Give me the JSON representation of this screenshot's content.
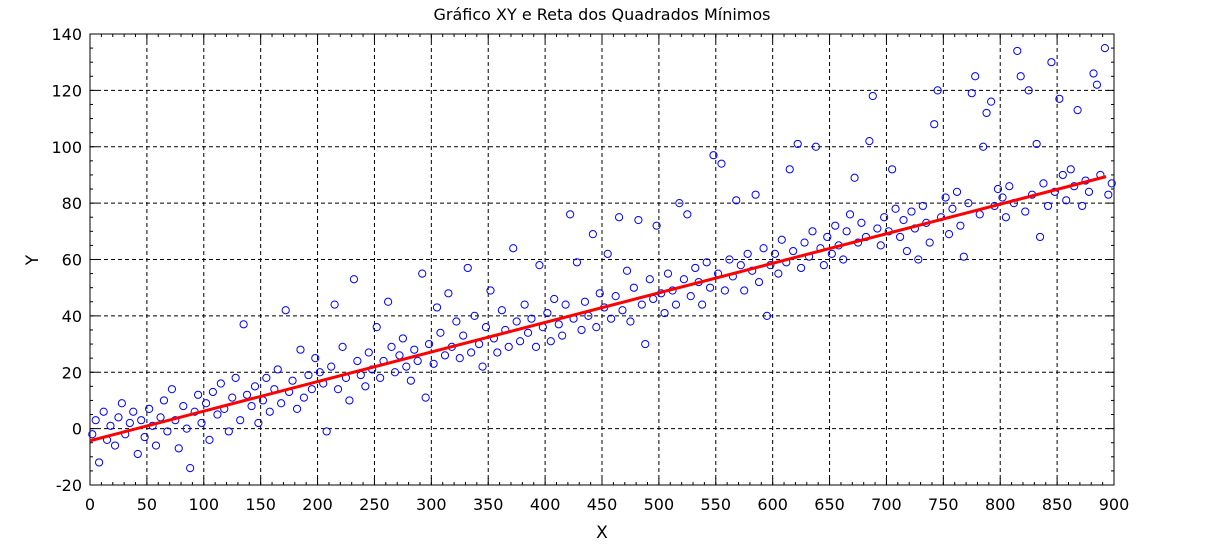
{
  "chart_data": {
    "type": "scatter",
    "title": "Gráfico XY e Reta dos Quadrados Mínimos",
    "xlabel": "X",
    "ylabel": "Y",
    "xlim": [
      0,
      900
    ],
    "ylim": [
      -20,
      140
    ],
    "x_ticks": [
      0,
      50,
      100,
      150,
      200,
      250,
      300,
      350,
      400,
      450,
      500,
      550,
      600,
      650,
      700,
      750,
      800,
      850,
      900
    ],
    "y_ticks": [
      -20,
      0,
      20,
      40,
      60,
      80,
      100,
      120,
      140
    ],
    "x_tick_labels": [
      "0",
      "50",
      "100",
      "150",
      "200",
      "250",
      "300",
      "350",
      "400",
      "450",
      "500",
      "550",
      "600",
      "650",
      "700",
      "750",
      "800",
      "850",
      "900"
    ],
    "y_tick_labels": [
      "-20",
      "0",
      "20",
      "40",
      "60",
      "80",
      "100",
      "120",
      "140"
    ],
    "grid": true,
    "series": [
      {
        "type": "scatter",
        "color": "#0000ff",
        "marker": "open-circle",
        "points": [
          [
            2,
            -2
          ],
          [
            5,
            3
          ],
          [
            8,
            -12
          ],
          [
            12,
            6
          ],
          [
            15,
            -4
          ],
          [
            18,
            1
          ],
          [
            22,
            -6
          ],
          [
            25,
            4
          ],
          [
            28,
            9
          ],
          [
            31,
            -2
          ],
          [
            35,
            2
          ],
          [
            38,
            6
          ],
          [
            42,
            -9
          ],
          [
            45,
            3
          ],
          [
            48,
            -3
          ],
          [
            52,
            7
          ],
          [
            55,
            1
          ],
          [
            58,
            -6
          ],
          [
            62,
            4
          ],
          [
            65,
            10
          ],
          [
            68,
            -1
          ],
          [
            72,
            14
          ],
          [
            75,
            3
          ],
          [
            78,
            -7
          ],
          [
            82,
            8
          ],
          [
            85,
            0
          ],
          [
            88,
            -14
          ],
          [
            92,
            6
          ],
          [
            95,
            12
          ],
          [
            98,
            2
          ],
          [
            102,
            9
          ],
          [
            105,
            -4
          ],
          [
            108,
            13
          ],
          [
            112,
            5
          ],
          [
            115,
            16
          ],
          [
            118,
            7
          ],
          [
            122,
            -1
          ],
          [
            125,
            11
          ],
          [
            128,
            18
          ],
          [
            132,
            3
          ],
          [
            135,
            37
          ],
          [
            138,
            12
          ],
          [
            142,
            8
          ],
          [
            145,
            15
          ],
          [
            148,
            2
          ],
          [
            152,
            10
          ],
          [
            155,
            18
          ],
          [
            158,
            6
          ],
          [
            162,
            14
          ],
          [
            165,
            21
          ],
          [
            168,
            9
          ],
          [
            172,
            42
          ],
          [
            175,
            13
          ],
          [
            178,
            17
          ],
          [
            182,
            7
          ],
          [
            185,
            28
          ],
          [
            188,
            11
          ],
          [
            192,
            19
          ],
          [
            195,
            14
          ],
          [
            198,
            25
          ],
          [
            202,
            20
          ],
          [
            205,
            16
          ],
          [
            208,
            -1
          ],
          [
            212,
            22
          ],
          [
            215,
            44
          ],
          [
            218,
            14
          ],
          [
            222,
            29
          ],
          [
            225,
            18
          ],
          [
            228,
            10
          ],
          [
            232,
            53
          ],
          [
            235,
            24
          ],
          [
            238,
            19
          ],
          [
            242,
            15
          ],
          [
            245,
            27
          ],
          [
            248,
            21
          ],
          [
            252,
            36
          ],
          [
            255,
            18
          ],
          [
            258,
            24
          ],
          [
            262,
            45
          ],
          [
            265,
            29
          ],
          [
            268,
            20
          ],
          [
            272,
            26
          ],
          [
            275,
            32
          ],
          [
            278,
            22
          ],
          [
            282,
            17
          ],
          [
            285,
            28
          ],
          [
            288,
            24
          ],
          [
            292,
            55
          ],
          [
            295,
            11
          ],
          [
            298,
            30
          ],
          [
            302,
            23
          ],
          [
            305,
            43
          ],
          [
            308,
            34
          ],
          [
            312,
            26
          ],
          [
            315,
            48
          ],
          [
            318,
            29
          ],
          [
            322,
            38
          ],
          [
            325,
            25
          ],
          [
            328,
            33
          ],
          [
            332,
            57
          ],
          [
            335,
            27
          ],
          [
            338,
            40
          ],
          [
            342,
            30
          ],
          [
            345,
            22
          ],
          [
            348,
            36
          ],
          [
            352,
            49
          ],
          [
            355,
            32
          ],
          [
            358,
            27
          ],
          [
            362,
            42
          ],
          [
            365,
            35
          ],
          [
            368,
            29
          ],
          [
            372,
            64
          ],
          [
            375,
            38
          ],
          [
            378,
            31
          ],
          [
            382,
            44
          ],
          [
            385,
            34
          ],
          [
            388,
            39
          ],
          [
            392,
            29
          ],
          [
            395,
            58
          ],
          [
            398,
            36
          ],
          [
            402,
            41
          ],
          [
            405,
            31
          ],
          [
            408,
            46
          ],
          [
            412,
            37
          ],
          [
            415,
            33
          ],
          [
            418,
            44
          ],
          [
            422,
            76
          ],
          [
            425,
            39
          ],
          [
            428,
            59
          ],
          [
            432,
            35
          ],
          [
            435,
            45
          ],
          [
            438,
            40
          ],
          [
            442,
            69
          ],
          [
            445,
            36
          ],
          [
            448,
            48
          ],
          [
            452,
            43
          ],
          [
            455,
            62
          ],
          [
            458,
            39
          ],
          [
            462,
            47
          ],
          [
            465,
            75
          ],
          [
            468,
            42
          ],
          [
            472,
            56
          ],
          [
            475,
            38
          ],
          [
            478,
            50
          ],
          [
            482,
            74
          ],
          [
            485,
            44
          ],
          [
            488,
            30
          ],
          [
            492,
            53
          ],
          [
            495,
            46
          ],
          [
            498,
            72
          ],
          [
            502,
            48
          ],
          [
            505,
            41
          ],
          [
            508,
            55
          ],
          [
            512,
            49
          ],
          [
            515,
            44
          ],
          [
            518,
            80
          ],
          [
            522,
            53
          ],
          [
            525,
            76
          ],
          [
            528,
            47
          ],
          [
            532,
            57
          ],
          [
            535,
            52
          ],
          [
            538,
            44
          ],
          [
            542,
            59
          ],
          [
            545,
            50
          ],
          [
            548,
            97
          ],
          [
            552,
            55
          ],
          [
            555,
            94
          ],
          [
            558,
            49
          ],
          [
            562,
            60
          ],
          [
            565,
            54
          ],
          [
            568,
            81
          ],
          [
            572,
            58
          ],
          [
            575,
            49
          ],
          [
            578,
            62
          ],
          [
            582,
            56
          ],
          [
            585,
            83
          ],
          [
            588,
            52
          ],
          [
            592,
            64
          ],
          [
            595,
            40
          ],
          [
            598,
            58
          ],
          [
            602,
            62
          ],
          [
            605,
            55
          ],
          [
            608,
            67
          ],
          [
            612,
            59
          ],
          [
            615,
            92
          ],
          [
            618,
            63
          ],
          [
            622,
            101
          ],
          [
            625,
            57
          ],
          [
            628,
            66
          ],
          [
            632,
            61
          ],
          [
            635,
            70
          ],
          [
            638,
            100
          ],
          [
            642,
            64
          ],
          [
            645,
            58
          ],
          [
            648,
            68
          ],
          [
            652,
            62
          ],
          [
            655,
            72
          ],
          [
            658,
            65
          ],
          [
            662,
            60
          ],
          [
            665,
            70
          ],
          [
            668,
            76
          ],
          [
            672,
            89
          ],
          [
            675,
            66
          ],
          [
            678,
            73
          ],
          [
            682,
            68
          ],
          [
            685,
            102
          ],
          [
            688,
            118
          ],
          [
            692,
            71
          ],
          [
            695,
            65
          ],
          [
            698,
            75
          ],
          [
            702,
            70
          ],
          [
            705,
            92
          ],
          [
            708,
            78
          ],
          [
            712,
            68
          ],
          [
            715,
            74
          ],
          [
            718,
            63
          ],
          [
            722,
            77
          ],
          [
            725,
            71
          ],
          [
            728,
            60
          ],
          [
            732,
            79
          ],
          [
            735,
            73
          ],
          [
            738,
            66
          ],
          [
            742,
            108
          ],
          [
            745,
            120
          ],
          [
            748,
            75
          ],
          [
            752,
            82
          ],
          [
            755,
            69
          ],
          [
            758,
            78
          ],
          [
            762,
            84
          ],
          [
            765,
            72
          ],
          [
            768,
            61
          ],
          [
            772,
            80
          ],
          [
            775,
            119
          ],
          [
            778,
            125
          ],
          [
            782,
            76
          ],
          [
            785,
            100
          ],
          [
            788,
            112
          ],
          [
            792,
            116
          ],
          [
            795,
            79
          ],
          [
            798,
            85
          ],
          [
            802,
            82
          ],
          [
            805,
            75
          ],
          [
            808,
            86
          ],
          [
            812,
            80
          ],
          [
            815,
            134
          ],
          [
            818,
            125
          ],
          [
            822,
            77
          ],
          [
            825,
            120
          ],
          [
            828,
            83
          ],
          [
            832,
            101
          ],
          [
            835,
            68
          ],
          [
            838,
            87
          ],
          [
            842,
            79
          ],
          [
            845,
            130
          ],
          [
            848,
            84
          ],
          [
            852,
            117
          ],
          [
            855,
            90
          ],
          [
            858,
            81
          ],
          [
            862,
            92
          ],
          [
            865,
            86
          ],
          [
            868,
            113
          ],
          [
            872,
            79
          ],
          [
            875,
            88
          ],
          [
            878,
            84
          ],
          [
            882,
            126
          ],
          [
            885,
            122
          ],
          [
            888,
            90
          ],
          [
            892,
            135
          ],
          [
            895,
            83
          ],
          [
            898,
            87
          ]
        ]
      },
      {
        "type": "line",
        "color": "#ff0000",
        "name": "",
        "points": [
          [
            0,
            -4.3
          ],
          [
            893,
            89.4
          ]
        ]
      }
    ]
  }
}
